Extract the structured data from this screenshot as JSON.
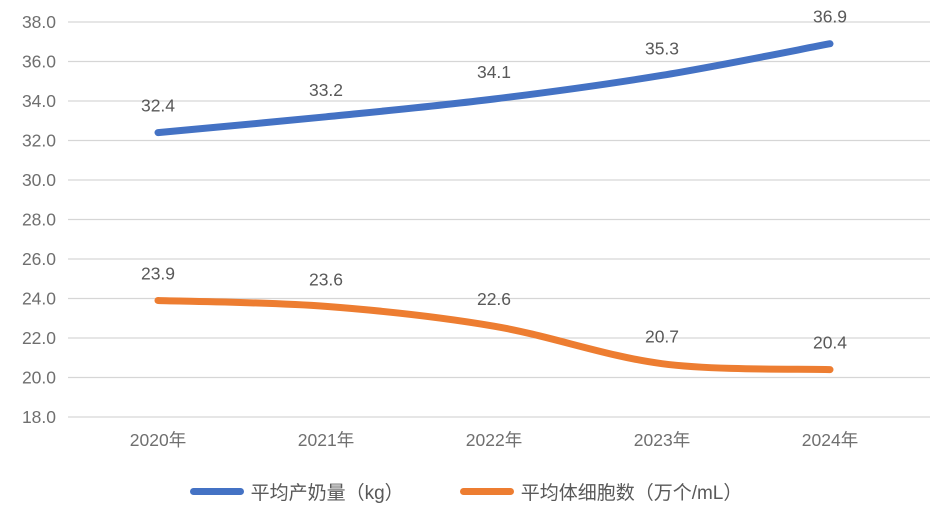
{
  "chart_data": {
    "type": "line",
    "categories": [
      "2020年",
      "2021年",
      "2022年",
      "2023年",
      "2024年"
    ],
    "series": [
      {
        "name": "平均产奶量（kg）",
        "key": "avg-milk-yield",
        "color": "#4472C4",
        "values": [
          32.4,
          33.2,
          34.1,
          35.3,
          36.9
        ]
      },
      {
        "name": "平均体细胞数（万个/mL）",
        "key": "avg-somatic-cell-count",
        "color": "#ED7D31",
        "values": [
          23.9,
          23.6,
          22.6,
          20.7,
          20.4
        ]
      }
    ],
    "title": "",
    "xlabel": "",
    "ylabel": "",
    "ylim": [
      18.0,
      38.0
    ],
    "ytick_step": 2.0,
    "yticks": [
      "38.0",
      "36.0",
      "34.0",
      "32.0",
      "30.0",
      "28.0",
      "26.0",
      "24.0",
      "22.0",
      "20.0",
      "18.0"
    ],
    "grid": true,
    "legend_position": "bottom",
    "data_labels": true,
    "colors": {
      "grid": "#D6D6D6",
      "axis_text": "#6F6F6F",
      "data_label_text": "#595959",
      "legend_text": "#595959",
      "background": "#FFFFFF"
    }
  }
}
